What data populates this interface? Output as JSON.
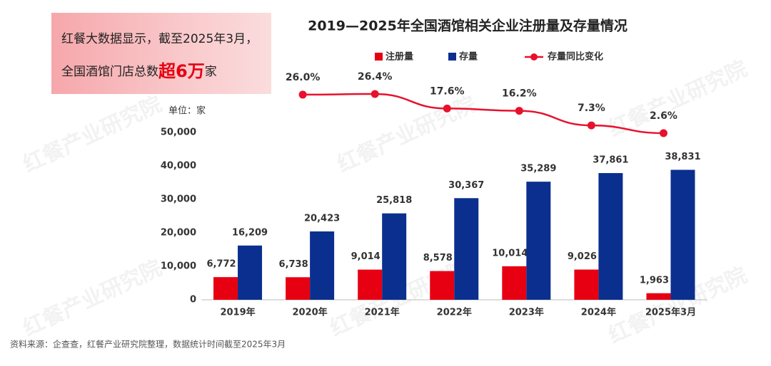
{
  "chart_data": {
    "type": "bar",
    "title": "2019—2025年全国酒馆相关企业注册量及存量情况",
    "unit_label": "单位：家",
    "source": "资料来源：企查查，红餐产业研究院整理，数据统计时间截至2025年3月",
    "callout": {
      "line1": "红餐大数据显示，截至2025年3月，",
      "line2_prefix": "全国酒馆门店总数",
      "line2_highlight": "超6万",
      "line2_suffix": "家"
    },
    "watermark": "红餐产业研究院",
    "categories": [
      "2019年",
      "2020年",
      "2021年",
      "2022年",
      "2023年",
      "2024年",
      "2025年3月"
    ],
    "series": [
      {
        "name": "注册量",
        "color": "#e60012",
        "values": [
          6772,
          6738,
          9014,
          8578,
          10014,
          9026,
          1963
        ],
        "value_labels": [
          "6,772",
          "6,738",
          "9,014",
          "8,578",
          "10,014",
          "9,026",
          "1,963"
        ]
      },
      {
        "name": "存量",
        "color": "#0b2f8f",
        "values": [
          16209,
          20423,
          25818,
          30367,
          35289,
          37861,
          38831
        ],
        "value_labels": [
          "16,209",
          "20,423",
          "25,818",
          "30,367",
          "35,289",
          "37,861",
          "38,831"
        ]
      },
      {
        "name": "存量同比变化",
        "type": "line",
        "color": "#e8112d",
        "values": [
          null,
          26.0,
          26.4,
          17.6,
          16.2,
          7.3,
          2.6
        ],
        "value_labels": [
          null,
          "26.0%",
          "26.4%",
          "17.6%",
          "16.2%",
          "7.3%",
          "2.6%"
        ]
      }
    ],
    "ylim": [
      0,
      50000
    ],
    "yticks": [
      0,
      {
        "value": 10000,
        "label": "10,000"
      },
      {
        "value": 20000,
        "label": "20,000"
      },
      {
        "value": 30000,
        "label": "30,000"
      },
      {
        "value": 40000,
        "label": "40,000"
      },
      {
        "value": 50000,
        "label": "50,000"
      }
    ],
    "grid": false
  }
}
